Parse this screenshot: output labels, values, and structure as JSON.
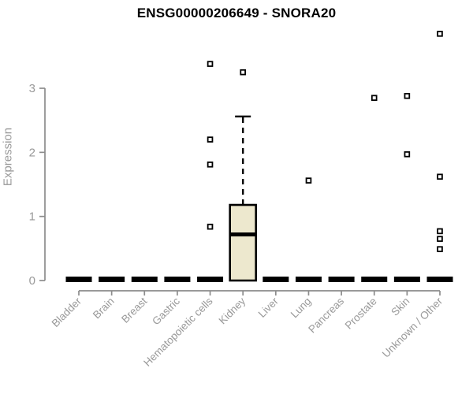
{
  "colors": {
    "background": "#FFFFFF",
    "title_text": "#000000",
    "axis_line": "#8C8C8C",
    "axis_text": "#999999",
    "box_fill": "#EDE8CE",
    "box_stroke": "#000000",
    "outlier_fill": "#FFFFFF"
  },
  "chart_data": {
    "type": "boxplot",
    "title": "ENSG00000206649 - SNORA20",
    "ylabel": "Expression",
    "xlabel": "",
    "ylim": [
      0,
      3.9
    ],
    "yticks": [
      0,
      1,
      2,
      3
    ],
    "grid": false,
    "legend": null,
    "categories": [
      "Bladder",
      "Brain",
      "Breast",
      "Gastric",
      "Hematopoietic cells",
      "Kidney",
      "Liver",
      "Lung",
      "Pancreas",
      "Prostate",
      "Skin",
      "Unknown / Other"
    ],
    "series": [
      {
        "category": "Bladder",
        "q1": 0,
        "median": 0,
        "q3": 0,
        "whisker_low": 0,
        "whisker_high": 0,
        "outliers": []
      },
      {
        "category": "Brain",
        "q1": 0,
        "median": 0,
        "q3": 0,
        "whisker_low": 0,
        "whisker_high": 0,
        "outliers": []
      },
      {
        "category": "Breast",
        "q1": 0,
        "median": 0,
        "q3": 0,
        "whisker_low": 0,
        "whisker_high": 0,
        "outliers": []
      },
      {
        "category": "Gastric",
        "q1": 0,
        "median": 0,
        "q3": 0,
        "whisker_low": 0,
        "whisker_high": 0,
        "outliers": []
      },
      {
        "category": "Hematopoietic cells",
        "q1": 0,
        "median": 0,
        "q3": 0,
        "whisker_low": 0,
        "whisker_high": 0,
        "outliers": [
          3.38,
          2.2,
          1.81,
          0.84
        ]
      },
      {
        "category": "Kidney",
        "q1": 0,
        "median": 0.72,
        "q3": 1.18,
        "whisker_low": 0,
        "whisker_high": 2.56,
        "outliers": [
          3.25
        ]
      },
      {
        "category": "Liver",
        "q1": 0,
        "median": 0,
        "q3": 0,
        "whisker_low": 0,
        "whisker_high": 0,
        "outliers": []
      },
      {
        "category": "Lung",
        "q1": 0,
        "median": 0,
        "q3": 0,
        "whisker_low": 0,
        "whisker_high": 0,
        "outliers": [
          1.56
        ]
      },
      {
        "category": "Pancreas",
        "q1": 0,
        "median": 0,
        "q3": 0,
        "whisker_low": 0,
        "whisker_high": 0,
        "outliers": []
      },
      {
        "category": "Prostate",
        "q1": 0,
        "median": 0,
        "q3": 0,
        "whisker_low": 0,
        "whisker_high": 0,
        "outliers": [
          2.85
        ]
      },
      {
        "category": "Skin",
        "q1": 0,
        "median": 0,
        "q3": 0,
        "whisker_low": 0,
        "whisker_high": 0,
        "outliers": [
          2.88,
          1.97
        ]
      },
      {
        "category": "Unknown / Other",
        "q1": 0,
        "median": 0,
        "q3": 0,
        "whisker_low": 0,
        "whisker_high": 0,
        "outliers": [
          3.85,
          1.62,
          0.77,
          0.65,
          0.49
        ]
      }
    ]
  }
}
